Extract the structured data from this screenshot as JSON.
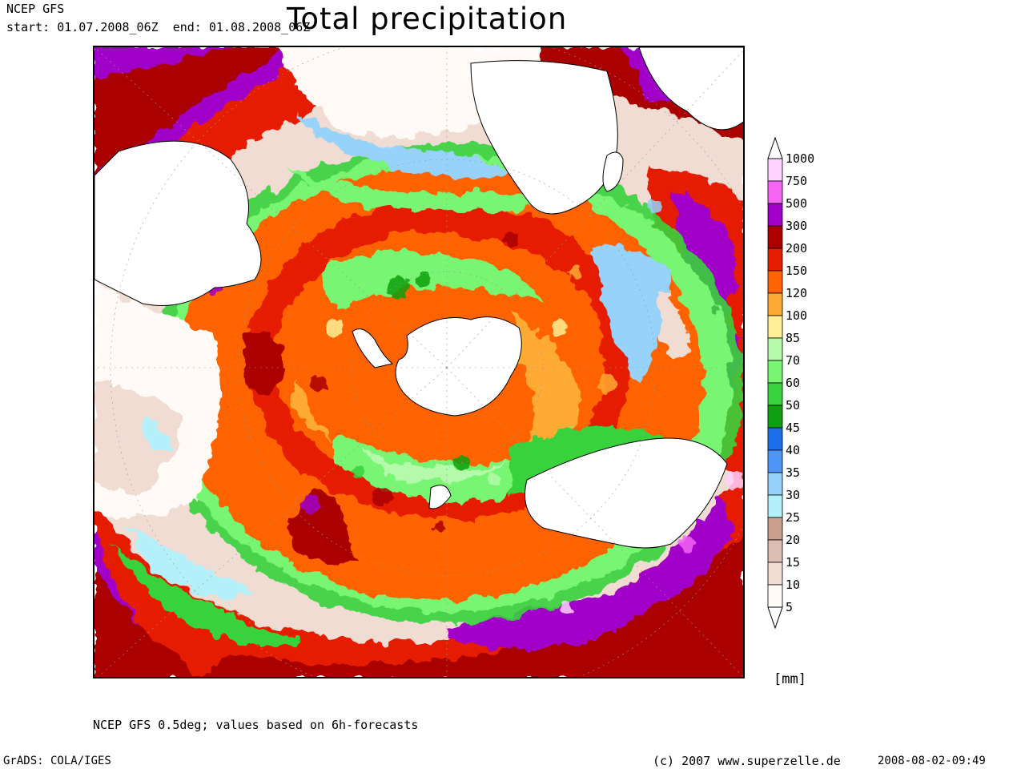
{
  "header": {
    "source": "NCEP GFS",
    "period": "start: 01.07.2008_06Z  end: 01.08.2008_06Z",
    "title": "Total precipitation"
  },
  "legend": {
    "unit": "[mm]",
    "levels": [
      "1000",
      "750",
      "500",
      "300",
      "200",
      "150",
      "120",
      "100",
      "85",
      "70",
      "60",
      "50",
      "45",
      "40",
      "35",
      "30",
      "25",
      "20",
      "15",
      "10",
      "5"
    ],
    "colors": [
      "#ffd2ff",
      "#f564f5",
      "#a000c8",
      "#aa0000",
      "#e61e00",
      "#ff6400",
      "#ffaa32",
      "#fff096",
      "#b4faaa",
      "#78f573",
      "#37d23c",
      "#0fa00f",
      "#1e6eeb",
      "#5096f5",
      "#96d2fa",
      "#b4f0fa",
      "#c8a08c",
      "#dcbeb4",
      "#f0dcd2",
      "#fffaf5"
    ]
  },
  "map": {
    "region": "Southern hemisphere polar stereographic",
    "palette": {
      "white": "#ffffff",
      "light": "#fffaf5",
      "land": "#ffffff",
      "coast": "#000000"
    }
  },
  "footer": {
    "note": "NCEP GFS 0.5deg; values based on 6h-forecasts",
    "software": "GrADS: COLA/IGES",
    "copyright": "(c) 2007 www.superzelle.de",
    "timestamp": "2008-08-02-09:49"
  }
}
